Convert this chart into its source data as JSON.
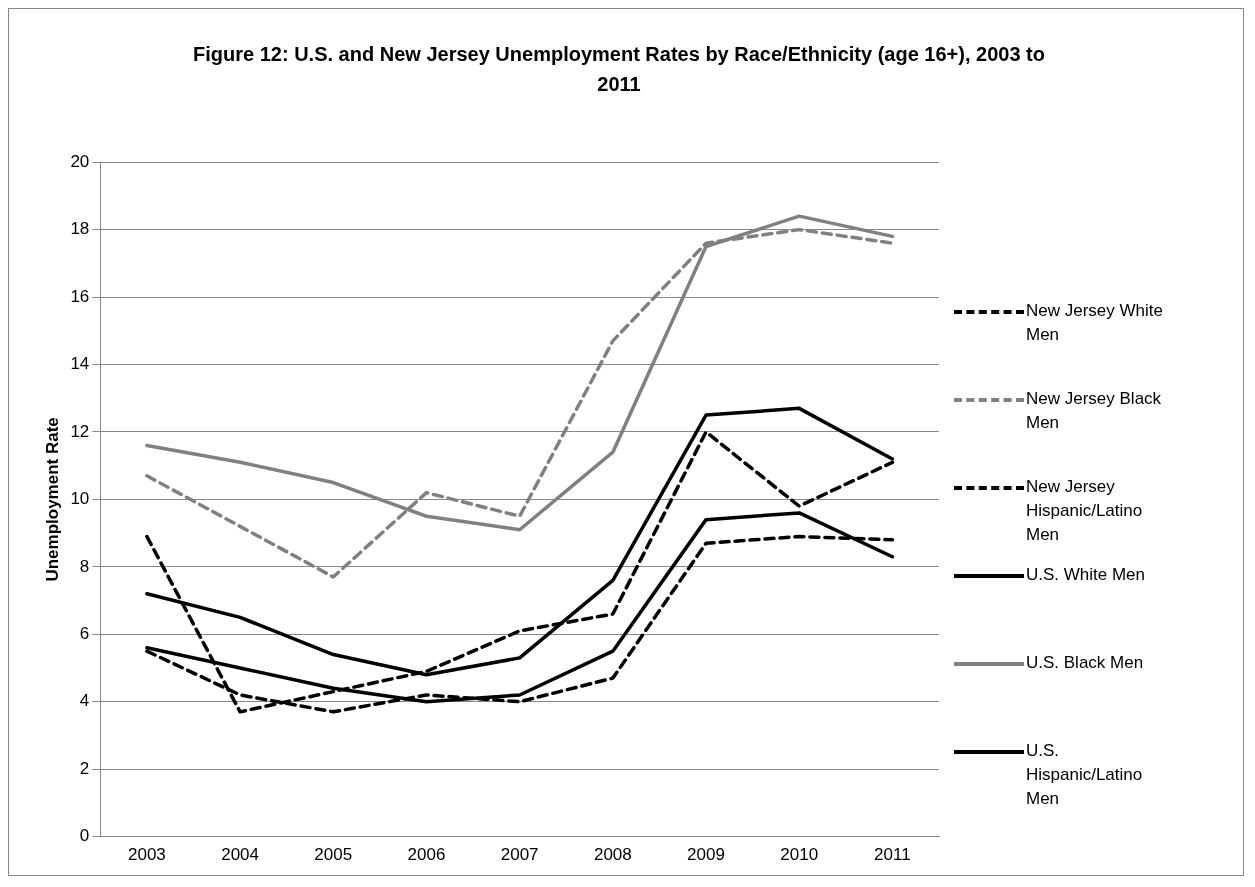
{
  "chart_data": {
    "type": "line",
    "title": "Figure 12: U.S. and New Jersey Unemployment Rates by Race/Ethnicity (age 16+), 2003 to 2011",
    "ylabel": "Unemployment Rate",
    "categories": [
      "2003",
      "2004",
      "2005",
      "2006",
      "2007",
      "2008",
      "2009",
      "2010",
      "2011"
    ],
    "series": [
      {
        "name": "New Jersey White Men",
        "color": "#000000",
        "line_style": "dashed",
        "values": [
          5.5,
          4.2,
          3.7,
          4.2,
          4.0,
          4.7,
          8.7,
          8.9,
          8.8
        ]
      },
      {
        "name": "New Jersey Black Men",
        "color": "#808080",
        "line_style": "dashed",
        "values": [
          10.7,
          9.2,
          7.7,
          10.2,
          9.5,
          14.7,
          17.6,
          18.0,
          17.6
        ]
      },
      {
        "name": "New Jersey Hispanic/Latino Men",
        "color": "#000000",
        "line_style": "dashed",
        "values": [
          8.9,
          3.7,
          4.3,
          4.9,
          6.1,
          6.6,
          12.0,
          9.8,
          11.1
        ]
      },
      {
        "name": "U.S. White Men",
        "color": "#000000",
        "line_style": "solid",
        "values": [
          5.6,
          5.0,
          4.4,
          4.0,
          4.2,
          5.5,
          9.4,
          9.6,
          8.3
        ]
      },
      {
        "name": "U.S. Black Men",
        "color": "#808080",
        "line_style": "solid",
        "values": [
          11.6,
          11.1,
          10.5,
          9.5,
          9.1,
          11.4,
          17.5,
          18.4,
          17.8
        ]
      },
      {
        "name": "U.S. Hispanic/Latino Men",
        "color": "#000000",
        "line_style": "solid",
        "values": [
          7.2,
          6.5,
          5.4,
          4.8,
          5.3,
          7.6,
          12.5,
          12.7,
          11.2
        ]
      }
    ],
    "ylim": [
      0,
      20
    ],
    "yticks": [
      0,
      2,
      4,
      6,
      8,
      10,
      12,
      14,
      16,
      18,
      20
    ],
    "grid": "y",
    "legend": "right",
    "marker": "none"
  }
}
